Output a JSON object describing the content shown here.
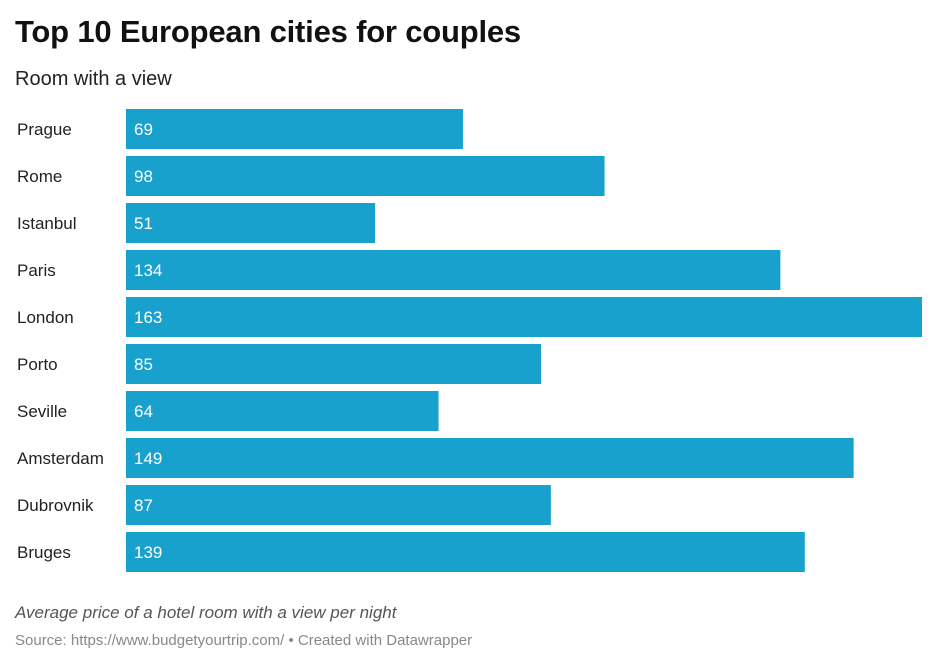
{
  "title": "Top 10 European cities for couples",
  "subtitle": "Room with a view",
  "notes": "Average price of a hotel room with a view per night",
  "source": "Source: https://www.budgetyourtrip.com/ • Created with Datawrapper",
  "colors": {
    "bar": "#18a1cd",
    "bar_label": "#ffffff",
    "category_label": "#222222"
  },
  "chart_data": {
    "type": "bar",
    "orientation": "horizontal",
    "categories": [
      "Prague",
      "Rome",
      "Istanbul",
      "Paris",
      "London",
      "Porto",
      "Seville",
      "Amsterdam",
      "Dubrovnik",
      "Bruges"
    ],
    "values": [
      69,
      98,
      51,
      134,
      163,
      85,
      64,
      149,
      87,
      139
    ],
    "title": "Top 10 European cities for couples",
    "subtitle": "Room with a view",
    "xlim": [
      0,
      163
    ],
    "grid": false,
    "legend": "none",
    "data_labels": "inside-left"
  }
}
